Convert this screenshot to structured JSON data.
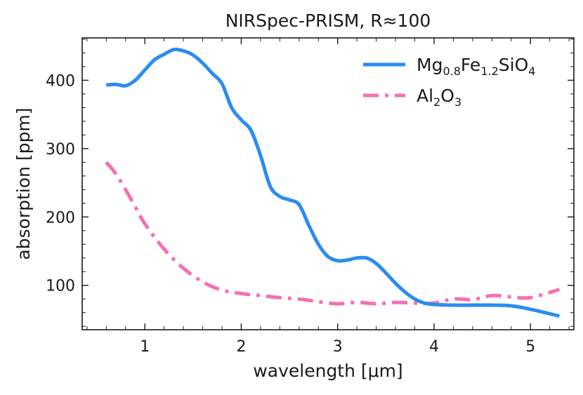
{
  "chart_data": {
    "type": "line",
    "title": "NIRSpec-PRISM, R≈100",
    "xlabel": "wavelength [μm]",
    "ylabel": "absorption [ppm]",
    "xlim": [
      0.35,
      5.45
    ],
    "ylim": [
      35,
      462
    ],
    "xticks": [
      1,
      2,
      3,
      4,
      5
    ],
    "yticks": [
      100,
      200,
      300,
      400
    ],
    "legend_position": "top-right",
    "series": [
      {
        "name": "Mg0.8Fe1.2SiO4",
        "color": "#2a8cf2",
        "dash": "solid",
        "legend_parts": [
          {
            "t": "Mg",
            "sub": false
          },
          {
            "t": "0.8",
            "sub": true
          },
          {
            "t": "Fe",
            "sub": false
          },
          {
            "t": "1.2",
            "sub": true
          },
          {
            "t": "SiO",
            "sub": false
          },
          {
            "t": "4",
            "sub": true
          }
        ],
        "x": [
          0.6,
          0.7,
          0.8,
          0.9,
          1.0,
          1.1,
          1.2,
          1.3,
          1.4,
          1.5,
          1.6,
          1.7,
          1.8,
          1.9,
          2.0,
          2.1,
          2.2,
          2.3,
          2.4,
          2.5,
          2.6,
          2.7,
          2.8,
          2.9,
          3.0,
          3.1,
          3.2,
          3.3,
          3.4,
          3.5,
          3.6,
          3.7,
          3.8,
          3.9,
          4.0,
          4.2,
          4.4,
          4.6,
          4.8,
          5.0,
          5.3
        ],
        "y": [
          393,
          394,
          392,
          400,
          415,
          430,
          438,
          445,
          443,
          437,
          425,
          410,
          395,
          360,
          342,
          327,
          290,
          245,
          230,
          225,
          218,
          188,
          160,
          142,
          136,
          137,
          140,
          140,
          132,
          118,
          103,
          90,
          80,
          74,
          72,
          71,
          71,
          71,
          70,
          65,
          55
        ]
      },
      {
        "name": "Al2O3",
        "color": "#f56fb5",
        "dash": "dashdot",
        "legend_parts": [
          {
            "t": "Al",
            "sub": false
          },
          {
            "t": "2",
            "sub": true
          },
          {
            "t": "O",
            "sub": false
          },
          {
            "t": "3",
            "sub": true
          }
        ],
        "x": [
          0.6,
          0.7,
          0.8,
          0.9,
          1.0,
          1.2,
          1.4,
          1.6,
          1.8,
          2.0,
          2.2,
          2.4,
          2.6,
          2.8,
          3.0,
          3.2,
          3.4,
          3.6,
          3.8,
          4.0,
          4.2,
          4.4,
          4.6,
          4.8,
          5.0,
          5.3
        ],
        "y": [
          280,
          263,
          240,
          215,
          190,
          153,
          125,
          105,
          93,
          88,
          85,
          82,
          80,
          76,
          73,
          75,
          73,
          75,
          74,
          74,
          80,
          79,
          85,
          83,
          82,
          94
        ]
      }
    ]
  }
}
